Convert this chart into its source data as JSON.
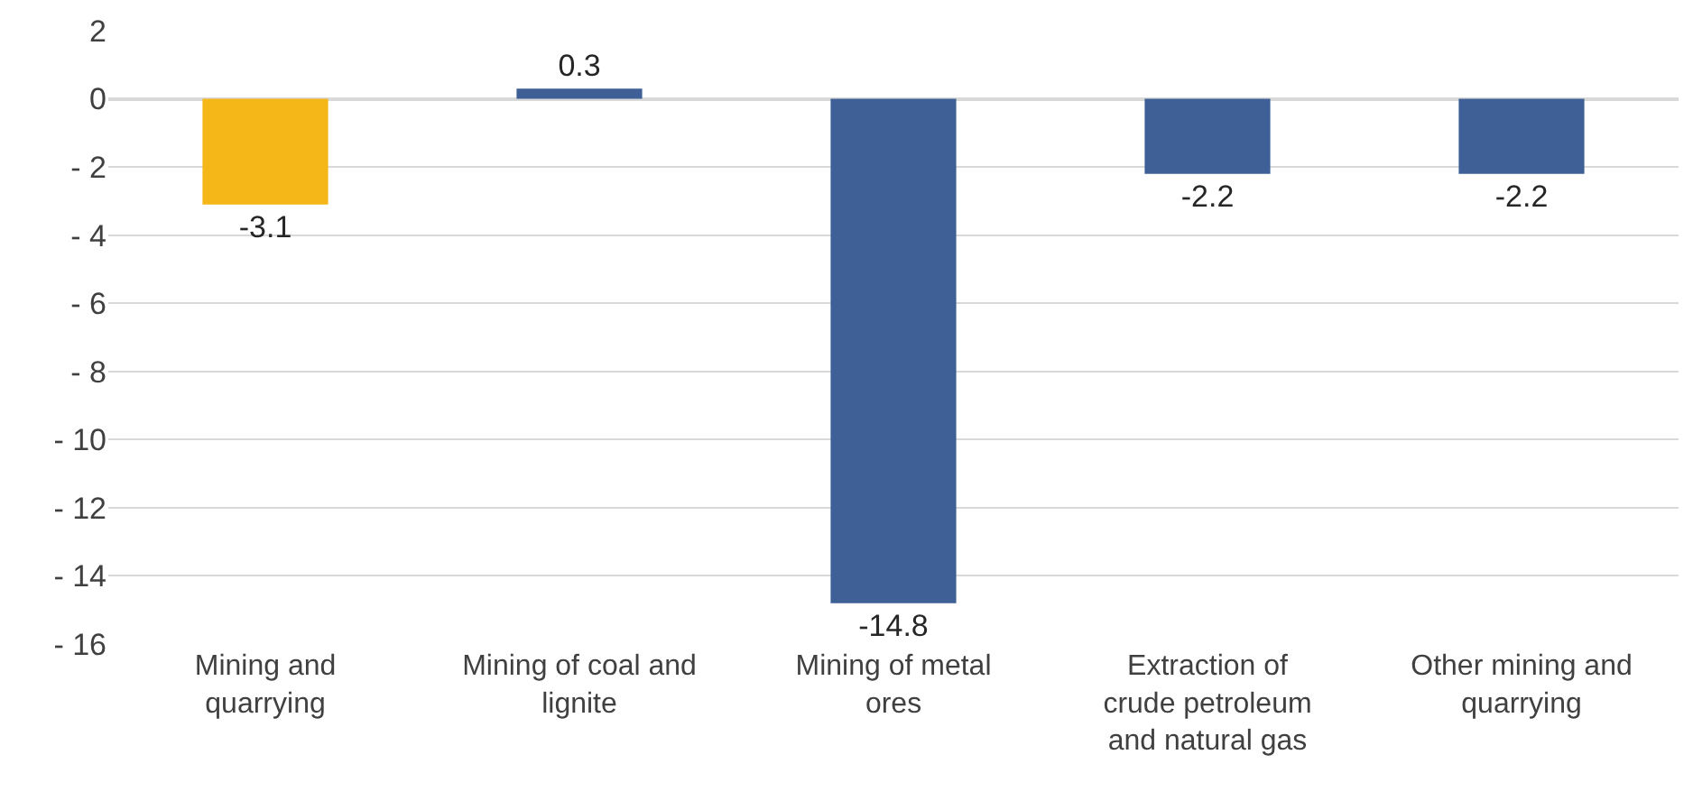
{
  "chart_data": {
    "type": "bar",
    "categories": [
      "Mining and quarrying",
      "Mining of coal and lignite",
      "Mining of metal ores",
      "Extraction of crude petroleum and natural gas",
      "Other mining and quarrying"
    ],
    "values": [
      -3.1,
      0.3,
      -14.8,
      -2.2,
      -2.2
    ],
    "colors": [
      "#f5b617",
      "#3e6096",
      "#3e6096",
      "#3e6096",
      "#3e6096"
    ],
    "ylim": [
      -16,
      2
    ],
    "yticks": [
      2,
      0,
      {
        "value": -2,
        "label": "- 2"
      },
      {
        "value": -4,
        "label": "- 4"
      },
      {
        "value": -6,
        "label": "- 6"
      },
      {
        "value": -8,
        "label": "- 8"
      },
      {
        "value": -10,
        "label": "- 10"
      },
      {
        "value": -12,
        "label": "- 12"
      },
      {
        "value": -14,
        "label": "- 14"
      },
      {
        "value": -16,
        "label": "- 16"
      }
    ],
    "grid": "y",
    "data_labels": true
  }
}
